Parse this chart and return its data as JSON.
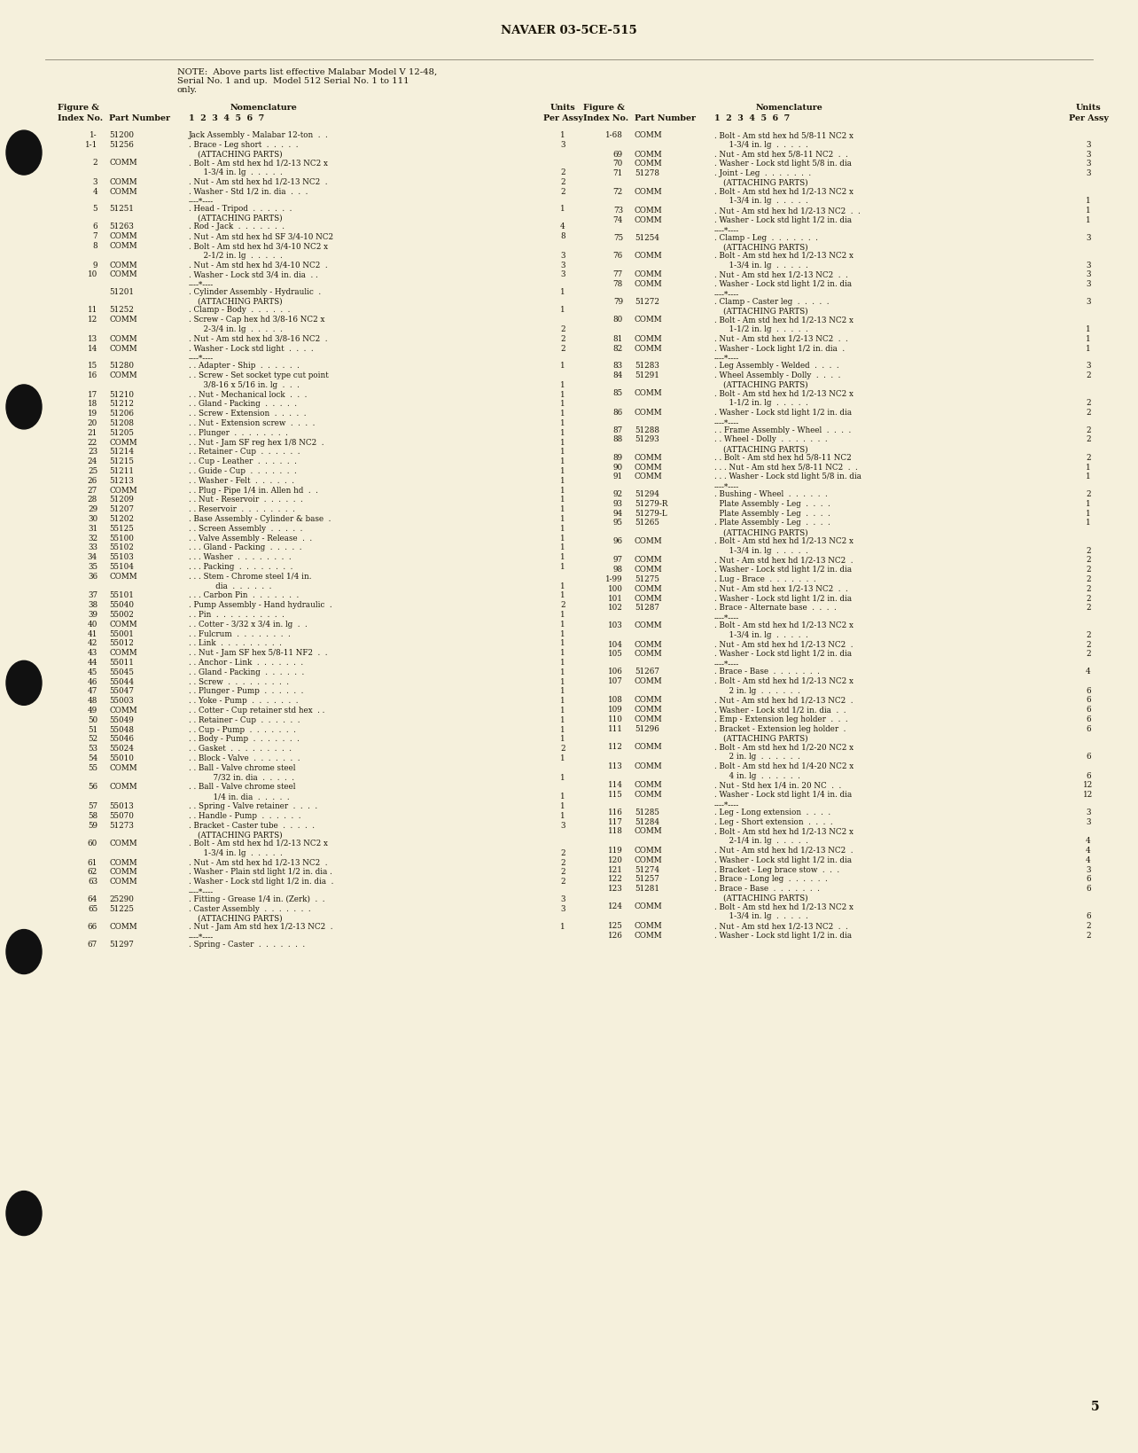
{
  "page_header": "NAVAER 03-5CE-515",
  "page_number": "5",
  "bg_color": "#f5f0dc",
  "text_color": "#1a1508",
  "left_rows": [
    [
      "1-",
      "51200",
      "Jack Assembly - Malabar 12-ton  .  .",
      "1"
    ],
    [
      "1-1",
      "51256",
      ". Brace - Leg short  .  .  .  .  .",
      "3"
    ],
    [
      "",
      "",
      "(ATTACHING PARTS)",
      ""
    ],
    [
      "2",
      "COMM",
      ". Bolt - Am std hex hd 1/2-13 NC2 x",
      ""
    ],
    [
      "",
      "",
      "      1-3/4 in. lg  .  .  .  .  .",
      "2"
    ],
    [
      "3",
      "COMM",
      ". Nut - Am std hex hd 1/2-13 NC2  .",
      "2"
    ],
    [
      "4",
      "COMM",
      ". Washer - Std 1/2 in. dia  .  .  .",
      "2"
    ],
    [
      "",
      "",
      "----*----",
      ""
    ],
    [
      "5",
      "51251",
      ". Head - Tripod  .  .  .  .  .  .",
      "1"
    ],
    [
      "",
      "",
      "(ATTACHING PARTS)",
      ""
    ],
    [
      "6",
      "51263",
      ". Rod - Jack  .  .  .  .  .  .  .",
      "4"
    ],
    [
      "7",
      "COMM",
      ". Nut - Am std hex hd SF 3/4-10 NC2",
      "8"
    ],
    [
      "8",
      "COMM",
      ". Bolt - Am std hex hd 3/4-10 NC2 x",
      ""
    ],
    [
      "",
      "",
      "      2-1/2 in. lg  .  .  .  .  .",
      "3"
    ],
    [
      "9",
      "COMM",
      ". Nut - Am std hex hd 3/4-10 NC2  .",
      "3"
    ],
    [
      "10",
      "COMM",
      ". Washer - Lock std 3/4 in. dia  . .",
      "3"
    ],
    [
      "",
      "",
      "----*----",
      ""
    ],
    [
      "",
      "51201",
      ". Cylinder Assembly - Hydraulic  .",
      "1"
    ],
    [
      "",
      "",
      "(ATTACHING PARTS)",
      ""
    ],
    [
      "11",
      "51252",
      ". Clamp - Body  .  .  .  .  .  .",
      "1"
    ],
    [
      "12",
      "COMM",
      ". Screw - Cap hex hd 3/8-16 NC2 x",
      ""
    ],
    [
      "",
      "",
      "      2-3/4 in. lg  .  .  .  .  .",
      "2"
    ],
    [
      "13",
      "COMM",
      ". Nut - Am std hex hd 3/8-16 NC2  .",
      "2"
    ],
    [
      "14",
      "COMM",
      ". Washer - Lock std light  .  .  .  .",
      "2"
    ],
    [
      "",
      "",
      "----*----",
      ""
    ],
    [
      "15",
      "51280",
      ". . Adapter - Ship  .  .  .  .  .  .",
      "1"
    ],
    [
      "16",
      "COMM",
      ". . Screw - Set socket type cut point",
      ""
    ],
    [
      "",
      "",
      "      3/8-16 x 5/16 in. lg  .  .  .",
      "1"
    ],
    [
      "17",
      "51210",
      ". . Nut - Mechanical lock  .  .  .",
      "1"
    ],
    [
      "18",
      "51212",
      ". . Gland - Packing  .  .  .  .  .",
      "1"
    ],
    [
      "19",
      "51206",
      ". . Screw - Extension  .  .  .  .  .",
      "1"
    ],
    [
      "20",
      "51208",
      ". . Nut - Extension screw  .  .  .  .",
      "1"
    ],
    [
      "21",
      "51205",
      ". . Plunger  .  .  .  .  .  .  .  .",
      "1"
    ],
    [
      "22",
      "COMM",
      ". . Nut - Jam SF reg hex 1/8 NC2  .",
      "1"
    ],
    [
      "23",
      "51214",
      ". . Retainer - Cup  .  .  .  .  .  .",
      "1"
    ],
    [
      "24",
      "51215",
      ". . Cup - Leather  .  .  .  .  .  .",
      "1"
    ],
    [
      "25",
      "51211",
      ". . Guide - Cup  .  .  .  .  .  .  .",
      "1"
    ],
    [
      "26",
      "51213",
      ". . Washer - Felt  .  .  .  .  .  .",
      "1"
    ],
    [
      "27",
      "COMM",
      ". . Plug - Pipe 1/4 in. Allen hd  .  .",
      "1"
    ],
    [
      "28",
      "51209",
      ". . Nut - Reservoir  .  .  .  .  .  .",
      "1"
    ],
    [
      "29",
      "51207",
      ". . Reservoir  .  .  .  .  .  .  .  .",
      "1"
    ],
    [
      "30",
      "51202",
      ". Base Assembly - Cylinder & base  .",
      "1"
    ],
    [
      "31",
      "55125",
      ". . Screen Assembly  .  .  .  .  .",
      "1"
    ],
    [
      "32",
      "55100",
      ". . Valve Assembly - Release  .  .",
      "1"
    ],
    [
      "33",
      "55102",
      ". . . Gland - Packing  .  .  .  .  .",
      "1"
    ],
    [
      "34",
      "55103",
      ". . . Washer  .  .  .  .  .  .  .  .",
      "1"
    ],
    [
      "35",
      "55104",
      ". . . Packing  .  .  .  .  .  .  .  .",
      "1"
    ],
    [
      "36",
      "COMM",
      ". . . Stem - Chrome steel 1/4 in.",
      ""
    ],
    [
      "",
      "",
      "           dia  .  .  .  .  .  .",
      "1"
    ],
    [
      "37",
      "55101",
      ". . . Carbon Pin  .  .  .  .  .  .  .",
      "1"
    ],
    [
      "38",
      "55040",
      ". Pump Assembly - Hand hydraulic  .",
      "2"
    ],
    [
      "39",
      "55002",
      ". . Pin  .  .  .  .  .  .  .  .  .  .",
      "1"
    ],
    [
      "40",
      "COMM",
      ". . Cotter - 3/32 x 3/4 in. lg  .  .",
      "1"
    ],
    [
      "41",
      "55001",
      ". . Fulcrum  .  .  .  .  .  .  .  .",
      "1"
    ],
    [
      "42",
      "55012",
      ". . Link  .  .  .  .  .  .  .  .  .",
      "1"
    ],
    [
      "43",
      "COMM",
      ". . Nut - Jam SF hex 5/8-11 NF2  .  .",
      "1"
    ],
    [
      "44",
      "55011",
      ". . Anchor - Link  .  .  .  .  .  .  .",
      "1"
    ],
    [
      "45",
      "55045",
      ". . Gland - Packing  .  .  .  .  .  .",
      "1"
    ],
    [
      "46",
      "55044",
      ". . Screw  .  .  .  .  .  .  .  .  .",
      "1"
    ],
    [
      "47",
      "55047",
      ". . Plunger - Pump  .  .  .  .  .  .",
      "1"
    ],
    [
      "48",
      "55003",
      ". . Yoke - Pump  .  .  .  .  .  .  .",
      "1"
    ],
    [
      "49",
      "COMM",
      ". . Cotter - Cup retainer std hex  . .",
      "1"
    ],
    [
      "50",
      "55049",
      ". . Retainer - Cup  .  .  .  .  .  .",
      "1"
    ],
    [
      "51",
      "55048",
      ". . Cup - Pump  .  .  .  .  .  .  .",
      "1"
    ],
    [
      "52",
      "55046",
      ". . Body - Pump  .  .  .  .  .  .  .",
      "1"
    ],
    [
      "53",
      "55024",
      ". . Gasket  .  .  .  .  .  .  .  .  .",
      "2"
    ],
    [
      "54",
      "55010",
      ". . Block - Valve  .  .  .  .  .  .  .",
      "1"
    ],
    [
      "55",
      "COMM",
      ". . Ball - Valve chrome steel",
      ""
    ],
    [
      "",
      "",
      "          7/32 in. dia  .  .  .  .  .",
      "1"
    ],
    [
      "56",
      "COMM",
      ". . Ball - Valve chrome steel",
      ""
    ],
    [
      "",
      "",
      "          1/4 in. dia  .  .  .  .  .",
      "1"
    ],
    [
      "57",
      "55013",
      ". . Spring - Valve retainer  .  .  .  .",
      "1"
    ],
    [
      "58",
      "55070",
      ". . Handle - Pump  .  .  .  .  .  .",
      "1"
    ],
    [
      "59",
      "51273",
      ". Bracket - Caster tube  .  .  .  .  .",
      "3"
    ],
    [
      "",
      "",
      "(ATTACHING PARTS)",
      ""
    ],
    [
      "60",
      "COMM",
      ". Bolt - Am std hex hd 1/2-13 NC2 x",
      ""
    ],
    [
      "",
      "",
      "      1-3/4 in. lg  .  .  .  .  .",
      "2"
    ],
    [
      "61",
      "COMM",
      ". Nut - Am std hex hd 1/2-13 NC2  .",
      "2"
    ],
    [
      "62",
      "COMM",
      ". Washer - Plain std light 1/2 in. dia .",
      "2"
    ],
    [
      "63",
      "COMM",
      ". Washer - Lock std light 1/2 in. dia  .",
      "2"
    ],
    [
      "",
      "",
      "----*----",
      ""
    ],
    [
      "64",
      "25290",
      ". Fitting - Grease 1/4 in. (Zerk)  .  .",
      "3"
    ],
    [
      "65",
      "51225",
      ". Caster Assembly  .  .  .  .  .  .  .",
      "3"
    ],
    [
      "",
      "",
      "(ATTACHING PARTS)",
      ""
    ],
    [
      "66",
      "COMM",
      ". Nut - Jam Am std hex 1/2-13 NC2  .",
      "1"
    ],
    [
      "",
      "",
      "----*----",
      ""
    ],
    [
      "67",
      "51297",
      ". Spring - Caster  .  .  .  .  .  .  .",
      ""
    ]
  ],
  "right_rows": [
    [
      "1-68",
      "COMM",
      ". Bolt - Am std hex hd 5/8-11 NC2 x",
      ""
    ],
    [
      "",
      "",
      "      1-3/4 in. lg  .  .  .  .  .",
      "3"
    ],
    [
      "69",
      "COMM",
      ". Nut - Am std hex 5/8-11 NC2  .  .",
      "3"
    ],
    [
      "70",
      "COMM",
      ". Washer - Lock std light 5/8 in. dia",
      "3"
    ],
    [
      "71",
      "51278",
      ". Joint - Leg  .  .  .  .  .  .  .",
      "3"
    ],
    [
      "",
      "",
      "(ATTACHING PARTS)",
      ""
    ],
    [
      "72",
      "COMM",
      ". Bolt - Am std hex hd 1/2-13 NC2 x",
      ""
    ],
    [
      "",
      "",
      "      1-3/4 in. lg  .  .  .  .  .",
      "1"
    ],
    [
      "73",
      "COMM",
      ". Nut - Am std hex hd 1/2-13 NC2  .  .",
      "1"
    ],
    [
      "74",
      "COMM",
      ". Washer - Lock std light 1/2 in. dia",
      "1"
    ],
    [
      "",
      "",
      "----*----",
      ""
    ],
    [
      "75",
      "51254",
      ". Clamp - Leg  .  .  .  .  .  .  .",
      "3"
    ],
    [
      "",
      "",
      "(ATTACHING PARTS)",
      ""
    ],
    [
      "76",
      "COMM",
      ". Bolt - Am std hex hd 1/2-13 NC2 x",
      ""
    ],
    [
      "",
      "",
      "      1-3/4 in. lg  .  .  .  .  .",
      "3"
    ],
    [
      "77",
      "COMM",
      ". Nut - Am std hex 1/2-13 NC2  .  .",
      "3"
    ],
    [
      "78",
      "COMM",
      ". Washer - Lock std light 1/2 in. dia",
      "3"
    ],
    [
      "",
      "",
      "----*----",
      ""
    ],
    [
      "79",
      "51272",
      ". Clamp - Caster leg  .  .  .  .  .",
      "3"
    ],
    [
      "",
      "",
      "(ATTACHING PARTS)",
      ""
    ],
    [
      "80",
      "COMM",
      ". Bolt - Am std hex hd 1/2-13 NC2 x",
      ""
    ],
    [
      "",
      "",
      "      1-1/2 in. lg  .  .  .  .  .",
      "1"
    ],
    [
      "81",
      "COMM",
      ". Nut - Am std hex 1/2-13 NC2  .  .",
      "1"
    ],
    [
      "82",
      "COMM",
      ". Washer - Lock light 1/2 in. dia  .",
      "1"
    ],
    [
      "",
      "",
      "----*----",
      ""
    ],
    [
      "83",
      "51283",
      ". Leg Assembly - Welded  .  .  .  .",
      "3"
    ],
    [
      "84",
      "51291",
      ". Wheel Assembly - Dolly  .  .  .  .",
      "2"
    ],
    [
      "",
      "",
      "(ATTACHING PARTS)",
      ""
    ],
    [
      "85",
      "COMM",
      ". Bolt - Am std hex hd 1/2-13 NC2 x",
      ""
    ],
    [
      "",
      "",
      "      1-1/2 in. lg  .  .  .  .  .",
      "2"
    ],
    [
      "86",
      "COMM",
      ". Washer - Lock std light 1/2 in. dia",
      "2"
    ],
    [
      "",
      "",
      "----*----",
      ""
    ],
    [
      "87",
      "51288",
      ". . Frame Assembly - Wheel  .  .  .  .",
      "2"
    ],
    [
      "88",
      "51293",
      ". . Wheel - Dolly  .  .  .  .  .  .  .",
      "2"
    ],
    [
      "",
      "",
      "(ATTACHING PARTS)",
      ""
    ],
    [
      "89",
      "COMM",
      ". . Bolt - Am std hex hd 5/8-11 NC2",
      "2"
    ],
    [
      "90",
      "COMM",
      ". . . Nut - Am std hex 5/8-11 NC2  .  .",
      "1"
    ],
    [
      "91",
      "COMM",
      ". . . Washer - Lock std light 5/8 in. dia",
      "1"
    ],
    [
      "",
      "",
      "----*----",
      ""
    ],
    [
      "92",
      "51294",
      ". Bushing - Wheel  .  .  .  .  .  .",
      "2"
    ],
    [
      "93",
      "51279-R",
      "  Plate Assembly - Leg  .  .  .  .",
      "1"
    ],
    [
      "94",
      "51279-L",
      "  Plate Assembly - Leg  .  .  .  .",
      "1"
    ],
    [
      "95",
      "51265",
      ". Plate Assembly - Leg  .  .  .  .",
      "1"
    ],
    [
      "",
      "",
      "(ATTACHING PARTS)",
      ""
    ],
    [
      "96",
      "COMM",
      ". Bolt - Am std hex hd 1/2-13 NC2 x",
      ""
    ],
    [
      "",
      "",
      "      1-3/4 in. lg  .  .  .  .  .",
      "2"
    ],
    [
      "97",
      "COMM",
      ". Nut - Am std hex hd 1/2-13 NC2  .",
      "2"
    ],
    [
      "98",
      "COMM",
      ". Washer - Lock std light 1/2 in. dia",
      "2"
    ],
    [
      "1-99",
      "51275",
      ". Lug - Brace  .  .  .  .  .  .  .",
      "2"
    ],
    [
      "100",
      "COMM",
      ". Nut - Am std hex 1/2-13 NC2  .  .",
      "2"
    ],
    [
      "101",
      "COMM",
      ". Washer - Lock std light 1/2 in. dia",
      "2"
    ],
    [
      "102",
      "51287",
      ". Brace - Alternate base  .  .  .  .",
      "2"
    ],
    [
      "",
      "",
      "----*----",
      ""
    ],
    [
      "103",
      "COMM",
      ". Bolt - Am std hex hd 1/2-13 NC2 x",
      ""
    ],
    [
      "",
      "",
      "      1-3/4 in. lg  .  .  .  .  .",
      "2"
    ],
    [
      "104",
      "COMM",
      ". Nut - Am std hex hd 1/2-13 NC2  .",
      "2"
    ],
    [
      "105",
      "COMM",
      ". Washer - Lock std light 1/2 in. dia",
      "2"
    ],
    [
      "",
      "",
      "----*----",
      ""
    ],
    [
      "106",
      "51267",
      ". Brace - Base  .  .  .  .  .  .  .",
      "4"
    ],
    [
      "107",
      "COMM",
      ". Bolt - Am std hex hd 1/2-13 NC2 x",
      ""
    ],
    [
      "",
      "",
      "      2 in. lg  .  .  .  .  .  .",
      "6"
    ],
    [
      "108",
      "COMM",
      ". Nut - Am std hex hd 1/2-13 NC2  .",
      "6"
    ],
    [
      "109",
      "COMM",
      ". Washer - Lock std 1/2 in. dia  .  .",
      "6"
    ],
    [
      "110",
      "COMM",
      ". Emp - Extension leg holder  .  .  .",
      "6"
    ],
    [
      "111",
      "51296",
      ". Bracket - Extension leg holder  .",
      "6"
    ],
    [
      "",
      "",
      "(ATTACHING PARTS)",
      ""
    ],
    [
      "112",
      "COMM",
      ". Bolt - Am std hex hd 1/2-20 NC2 x",
      ""
    ],
    [
      "",
      "",
      "      2 in. lg  .  .  .  .  .  .",
      "6"
    ],
    [
      "113",
      "COMM",
      ". Bolt - Am std hex hd 1/4-20 NC2 x",
      ""
    ],
    [
      "",
      "",
      "      4 in. lg  .  .  .  .  .  .",
      "6"
    ],
    [
      "114",
      "COMM",
      ". Nut - Std hex 1/4 in. 20 NC  .  .",
      "12"
    ],
    [
      "115",
      "COMM",
      ". Washer - Lock std light 1/4 in. dia",
      "12"
    ],
    [
      "",
      "",
      "----*----",
      ""
    ],
    [
      "116",
      "51285",
      ". Leg - Long extension  .  .  .  .",
      "3"
    ],
    [
      "117",
      "51284",
      ". Leg - Short extension  .  .  .  .",
      "3"
    ],
    [
      "118",
      "COMM",
      ". Bolt - Am std hex hd 1/2-13 NC2 x",
      ""
    ],
    [
      "",
      "",
      "      2-1/4 in. lg  .  .  .  .  .",
      "4"
    ],
    [
      "119",
      "COMM",
      ". Nut - Am std hex hd 1/2-13 NC2  .",
      "4"
    ],
    [
      "120",
      "COMM",
      ". Washer - Lock std light 1/2 in. dia",
      "4"
    ],
    [
      "121",
      "51274",
      ". Bracket - Leg brace stow  .  .  .",
      "3"
    ],
    [
      "122",
      "51257",
      ". Brace - Long leg  .  .  .  .  .  .",
      "6"
    ],
    [
      "123",
      "51281",
      ". Brace - Base  .  .  .  .  .  .  .",
      "6"
    ],
    [
      "",
      "",
      "(ATTACHING PARTS)",
      ""
    ],
    [
      "124",
      "COMM",
      ". Bolt - Am std hex hd 1/2-13 NC2 x",
      ""
    ],
    [
      "",
      "",
      "      1-3/4 in. lg  .  .  .  .  .",
      "6"
    ],
    [
      "125",
      "COMM",
      ". Nut - Am std hex 1/2-13 NC2  .  .",
      "2"
    ],
    [
      "126",
      "COMM",
      ". Washer - Lock std light 1/2 in. dia",
      "2"
    ]
  ],
  "note_line1": "NOTE:  Above parts list effective Malabar Model V 12-48,",
  "note_line2": "Serial No. 1 and up.  Model 512 Serial No. 1 to 111",
  "note_line3": "only."
}
